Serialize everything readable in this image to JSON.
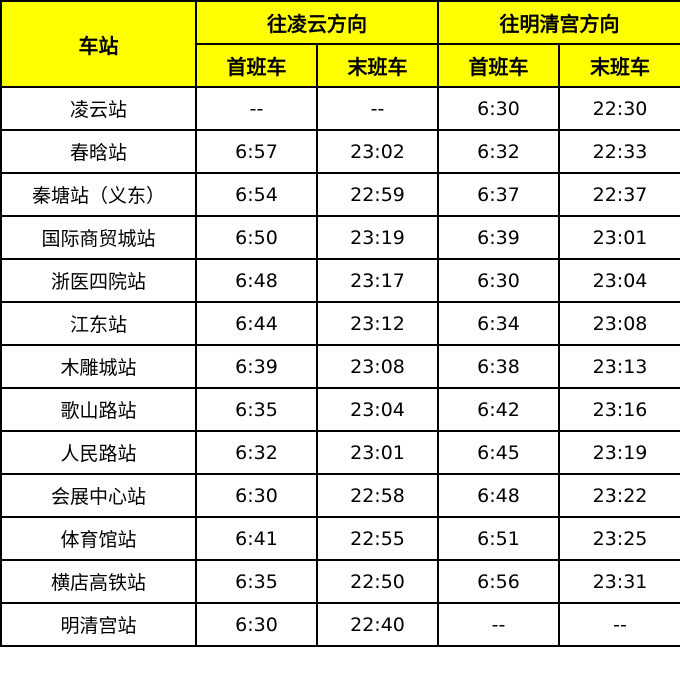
{
  "header": {
    "station": "车站",
    "dir1": "往凌云方向",
    "dir2": "往明清宫方向",
    "first": "首班车",
    "last": "末班车",
    "bg_color": "#FFFF00"
  },
  "rows": [
    {
      "station": "凌云站",
      "d1_first": "--",
      "d1_last": "--",
      "d2_first": "6:30",
      "d2_last": "22:30"
    },
    {
      "station": "春晗站",
      "d1_first": "6:57",
      "d1_last": "23:02",
      "d2_first": "6:32",
      "d2_last": "22:33"
    },
    {
      "station": "秦塘站（义东）",
      "d1_first": "6:54",
      "d1_last": "22:59",
      "d2_first": "6:37",
      "d2_last": "22:37"
    },
    {
      "station": "国际商贸城站",
      "d1_first": "6:50",
      "d1_last": "23:19",
      "d2_first": "6:39",
      "d2_last": "23:01"
    },
    {
      "station": "浙医四院站",
      "d1_first": "6:48",
      "d1_last": "23:17",
      "d2_first": "6:30",
      "d2_last": "23:04"
    },
    {
      "station": "江东站",
      "d1_first": "6:44",
      "d1_last": "23:12",
      "d2_first": "6:34",
      "d2_last": "23:08"
    },
    {
      "station": "木雕城站",
      "d1_first": "6:39",
      "d1_last": "23:08",
      "d2_first": "6:38",
      "d2_last": "23:13"
    },
    {
      "station": "歌山路站",
      "d1_first": "6:35",
      "d1_last": "23:04",
      "d2_first": "6:42",
      "d2_last": "23:16"
    },
    {
      "station": "人民路站",
      "d1_first": "6:32",
      "d1_last": "23:01",
      "d2_first": "6:45",
      "d2_last": "23:19"
    },
    {
      "station": "会展中心站",
      "d1_first": "6:30",
      "d1_last": "22:58",
      "d2_first": "6:48",
      "d2_last": "23:22"
    },
    {
      "station": "体育馆站",
      "d1_first": "6:41",
      "d1_last": "22:55",
      "d2_first": "6:51",
      "d2_last": "23:25"
    },
    {
      "station": "横店高铁站",
      "d1_first": "6:35",
      "d1_last": "22:50",
      "d2_first": "6:56",
      "d2_last": "23:31"
    },
    {
      "station": "明清宫站",
      "d1_first": "6:30",
      "d1_last": "22:40",
      "d2_first": "--",
      "d2_last": "--"
    }
  ]
}
